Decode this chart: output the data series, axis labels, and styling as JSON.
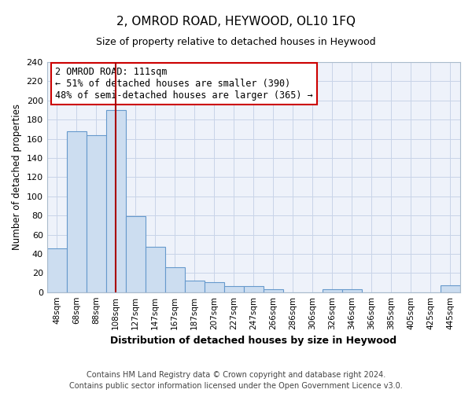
{
  "title": "2, OMROD ROAD, HEYWOOD, OL10 1FQ",
  "subtitle": "Size of property relative to detached houses in Heywood",
  "xlabel": "Distribution of detached houses by size in Heywood",
  "ylabel": "Number of detached properties",
  "bar_labels": [
    "48sqm",
    "68sqm",
    "88sqm",
    "108sqm",
    "127sqm",
    "147sqm",
    "167sqm",
    "187sqm",
    "207sqm",
    "227sqm",
    "247sqm",
    "266sqm",
    "286sqm",
    "306sqm",
    "326sqm",
    "346sqm",
    "366sqm",
    "385sqm",
    "405sqm",
    "425sqm",
    "445sqm"
  ],
  "bar_values": [
    46,
    168,
    164,
    190,
    79,
    47,
    26,
    12,
    10,
    6,
    6,
    3,
    0,
    0,
    3,
    3,
    0,
    0,
    0,
    0,
    7
  ],
  "bar_color": "#ccddf0",
  "bar_edge_color": "#6699cc",
  "background_color": "#eef2fa",
  "grid_color": "#c8d4e8",
  "vline_x_idx": 3,
  "vline_color": "#aa0000",
  "annotation_title": "2 OMROD ROAD: 111sqm",
  "annotation_line1": "← 51% of detached houses are smaller (390)",
  "annotation_line2": "48% of semi-detached houses are larger (365) →",
  "annotation_box_edge": "#cc0000",
  "ylim": [
    0,
    240
  ],
  "yticks": [
    0,
    20,
    40,
    60,
    80,
    100,
    120,
    140,
    160,
    180,
    200,
    220,
    240
  ],
  "footnote1": "Contains HM Land Registry data © Crown copyright and database right 2024.",
  "footnote2": "Contains public sector information licensed under the Open Government Licence v3.0."
}
